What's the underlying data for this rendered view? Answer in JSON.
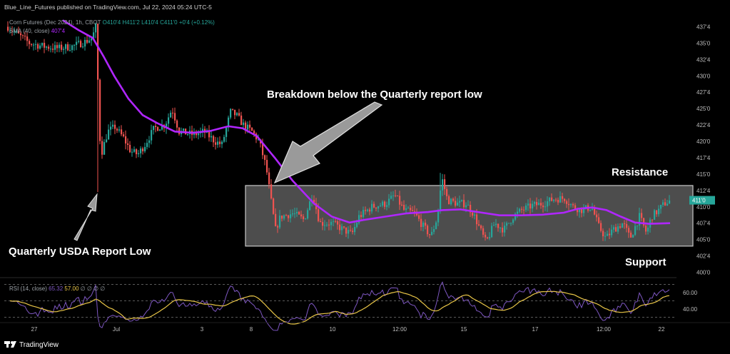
{
  "header": {
    "publisher": "Blue_Line_Futures published on TradingView.com, Jul 22, 2024 05:24 UTC-5",
    "symbol": "Corn Futures (Dec 2024), 1h, CBOT",
    "ohlc": "O410'4 H411'2 L410'4 C411'0 +0'4 (+0.12%)",
    "sma_label": "SMA (40, close)",
    "sma_value": "407'4"
  },
  "colors": {
    "up": "#26a69a",
    "down": "#ef5350",
    "sma": "#b026ff",
    "rsi": "#7e57c2",
    "rsi_ma": "#e8c547",
    "box_fill": "#5e5e5e",
    "box_stroke": "#c8c8c8"
  },
  "chart_data": [
    {
      "type": "candlestick",
      "title": "Corn Futures (Dec 2024), 1h, CBOT",
      "y_ticks": [
        "437'4",
        "435'0",
        "432'4",
        "430'0",
        "427'4",
        "425'0",
        "422'4",
        "420'0",
        "417'4",
        "415'0",
        "412'4",
        "410'0",
        "407'4",
        "405'0",
        "402'4",
        "400'0"
      ],
      "ylim": [
        399.75,
        438.5
      ],
      "x_ticks": [
        "27",
        "Jul",
        "3",
        "8",
        "10",
        "12:00",
        "15",
        "17",
        "12:00",
        "22"
      ],
      "last_price": 411.0,
      "sma_series": {
        "name": "SMA (40, close)",
        "last_value": 407.5
      },
      "annotations": {
        "breakdown": "Breakdown below the Quarterly report low",
        "report_low": "Quarterly USDA Report Low",
        "resistance": "Resistance",
        "support": "Support"
      },
      "range_box": {
        "top": 413.25,
        "bottom": 404.0
      },
      "grid": false
    },
    {
      "type": "line",
      "title": "RSI (14, close)",
      "header_values": [
        "65.32",
        "57.00",
        "∅",
        "∅",
        "∅",
        "∅"
      ],
      "y_ticks": [
        "60.00",
        "40.00"
      ],
      "levels": [
        70,
        50,
        30
      ],
      "series": [
        {
          "name": "RSI",
          "last_value": 65.32
        },
        {
          "name": "RSI-based MA",
          "last_value": 57.0
        }
      ]
    }
  ],
  "footer": {
    "brand": "TradingView"
  }
}
